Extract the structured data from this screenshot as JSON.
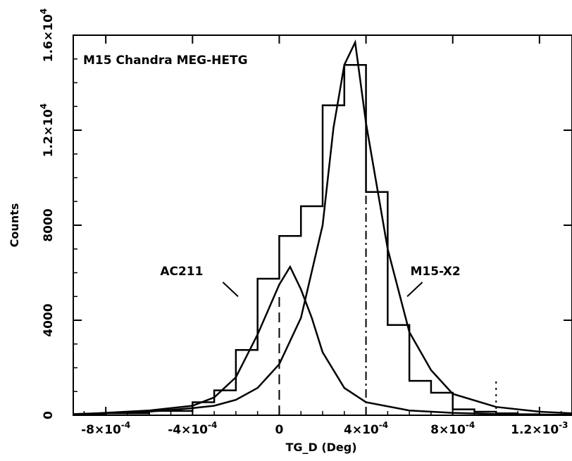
{
  "chart_data": {
    "type": "bar",
    "title": "M15 Chandra MEG-HETG",
    "xlabel": "TG_D (Deg)",
    "ylabel": "Counts",
    "xlim": [
      -0.00095,
      0.00135
    ],
    "ylim": [
      0,
      16000
    ],
    "grid": false,
    "x_ticks": [
      {
        "value": -0.0008,
        "mant": "-8",
        "exp": "-4"
      },
      {
        "value": -0.0004,
        "mant": "-4",
        "exp": "-4"
      },
      {
        "value": 0,
        "mant": "0",
        "exp": ""
      },
      {
        "value": 0.0004,
        "mant": "4",
        "exp": "-4"
      },
      {
        "value": 0.0008,
        "mant": "8",
        "exp": "-4"
      },
      {
        "value": 0.0012,
        "mant": "1.2",
        "exp": "-3"
      }
    ],
    "y_ticks": [
      {
        "value": 0,
        "mant": "0",
        "exp": ""
      },
      {
        "value": 4000,
        "mant": "4000",
        "exp": ""
      },
      {
        "value": 8000,
        "mant": "8000",
        "exp": ""
      },
      {
        "value": 12000,
        "mant": "1.2",
        "exp": "4"
      },
      {
        "value": 16000,
        "mant": "1.6",
        "exp": "4"
      }
    ],
    "histogram": {
      "name": "",
      "bin_edges": [
        -0.00095,
        -0.0008,
        -0.0006,
        -0.0004,
        -0.0003,
        -0.0002,
        -0.0001,
        0,
        0.0001,
        0.0002,
        0.0003,
        0.0004,
        0.0005,
        0.0006,
        0.0007,
        0.0008,
        0.0009,
        0.001,
        0.0011,
        0.0012,
        0.00135
      ],
      "counts": [
        50,
        80,
        180,
        550,
        1050,
        2750,
        5750,
        7550,
        8800,
        13050,
        14750,
        9400,
        3800,
        1450,
        950,
        250,
        150,
        80,
        40,
        20
      ]
    },
    "series": [
      {
        "name": "AC211",
        "x": [
          -0.00095,
          -0.0006,
          -0.0004,
          -0.0003,
          -0.0002,
          -0.0001,
          0,
          5e-05,
          0.0001,
          0.00015,
          0.0002,
          0.0003,
          0.0004,
          0.0006,
          0.0008,
          0.001,
          0.00135
        ],
        "values": [
          30,
          200,
          400,
          750,
          1600,
          3400,
          5500,
          6250,
          5300,
          4100,
          2650,
          1150,
          550,
          200,
          100,
          50,
          20
        ]
      },
      {
        "name": "M15-X2",
        "x": [
          -0.00095,
          -0.0006,
          -0.0004,
          -0.0003,
          -0.0002,
          -0.0001,
          0,
          0.0001,
          0.0002,
          0.00025,
          0.0003,
          0.00035,
          0.0004,
          0.0005,
          0.0006,
          0.0007,
          0.0008,
          0.001,
          0.0012,
          0.00135
        ],
        "values": [
          50,
          150,
          300,
          400,
          650,
          1150,
          2150,
          4100,
          8000,
          12100,
          14750,
          15700,
          12300,
          7000,
          3500,
          1900,
          900,
          350,
          150,
          80
        ]
      }
    ],
    "vertical_lines": [
      {
        "x": 0,
        "style": "dashed"
      },
      {
        "x": 0.0004,
        "style": "dash-dot"
      },
      {
        "x": 0.001,
        "style": "dotted"
      }
    ],
    "annotations": [
      {
        "text": "AC211",
        "x": -0.00045,
        "y": 5900,
        "leader_x": [
          -0.00026,
          -0.00019
        ],
        "leader_y": [
          5600,
          5000
        ]
      },
      {
        "text": "M15-X2",
        "x": 0.00072,
        "y": 5900,
        "leader_x": [
          0.00066,
          0.00059
        ],
        "leader_y": [
          5600,
          5000
        ]
      }
    ]
  }
}
